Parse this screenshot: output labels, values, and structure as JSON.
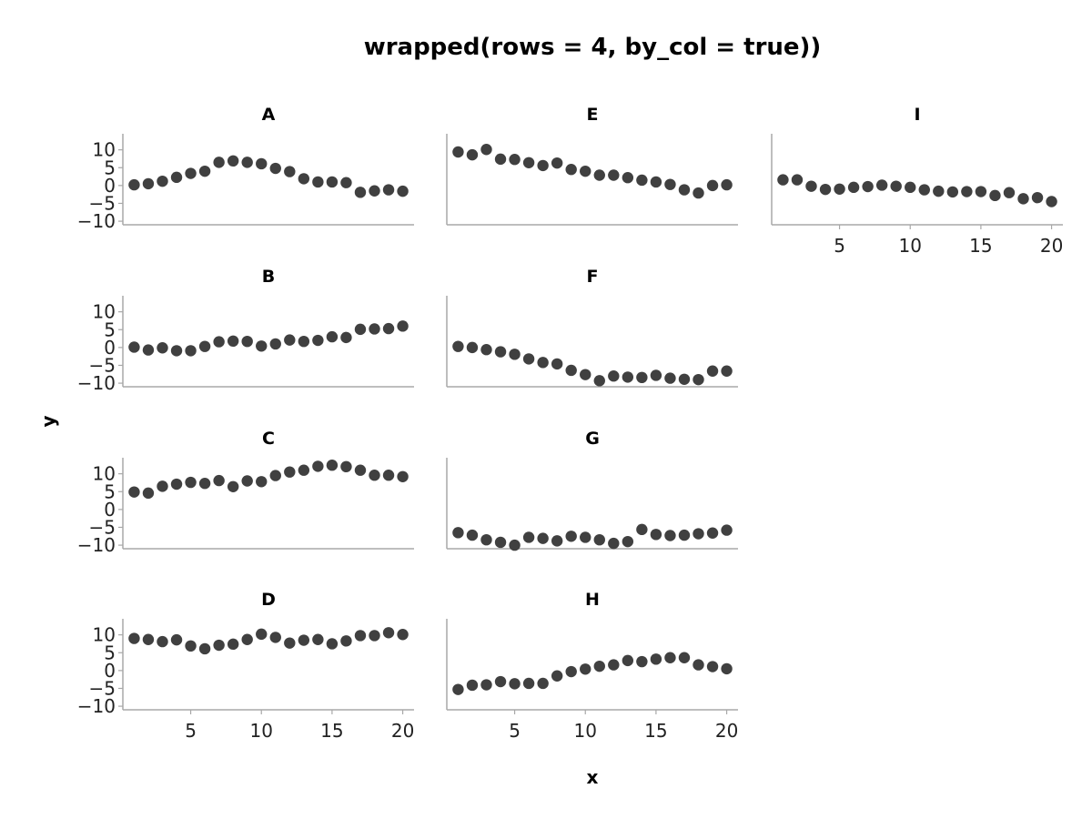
{
  "chart_data": {
    "type": "scatter",
    "title": "wrapped(rows = 4, by_col = true))",
    "xlabel": "x",
    "ylabel": "y",
    "layout": "wrapped, 4 rows, filled by column",
    "xlim": [
      0.2,
      20.8
    ],
    "ylim": [
      -11,
      14.5
    ],
    "x_ticks": [
      5,
      10,
      15,
      20
    ],
    "y_ticks": [
      10,
      5,
      0,
      -5,
      -10
    ],
    "y_tick_labels": [
      "10",
      "5",
      "0",
      "−5",
      "−10"
    ],
    "point_color": "#404040",
    "x": [
      1,
      2,
      3,
      4,
      5,
      6,
      7,
      8,
      9,
      10,
      11,
      12,
      13,
      14,
      15,
      16,
      17,
      18,
      19,
      20
    ],
    "panels": [
      {
        "name": "A",
        "y": [
          0.2,
          0.5,
          1.2,
          2.3,
          3.4,
          4.0,
          6.5,
          6.9,
          6.5,
          6.1,
          4.8,
          3.9,
          1.9,
          1.0,
          1.0,
          0.8,
          -1.9,
          -1.5,
          -1.2,
          -1.6
        ]
      },
      {
        "name": "B",
        "y": [
          0.1,
          -0.7,
          -0.1,
          -0.9,
          -0.9,
          0.3,
          1.6,
          1.8,
          1.7,
          0.4,
          1.0,
          2.1,
          1.7,
          2.0,
          3.0,
          2.8,
          5.1,
          5.2,
          5.3,
          6.0
        ]
      },
      {
        "name": "C",
        "y": [
          4.9,
          4.6,
          6.5,
          7.1,
          7.6,
          7.3,
          8.1,
          6.4,
          8.0,
          7.8,
          9.5,
          10.5,
          11.0,
          12.1,
          12.4,
          12.0,
          11.0,
          9.6,
          9.6,
          9.2
        ]
      },
      {
        "name": "D",
        "y": [
          9.0,
          8.7,
          8.1,
          8.6,
          6.9,
          6.1,
          7.1,
          7.4,
          8.7,
          10.2,
          9.3,
          7.7,
          8.5,
          8.7,
          7.5,
          8.3,
          9.8,
          9.8,
          10.6,
          10.1
        ]
      },
      {
        "name": "E",
        "y": [
          9.4,
          8.6,
          10.1,
          7.4,
          7.3,
          6.4,
          5.6,
          6.3,
          4.5,
          4.0,
          2.9,
          2.9,
          2.2,
          1.5,
          1.0,
          0.3,
          -1.2,
          -2.1,
          0.0,
          0.2
        ]
      },
      {
        "name": "F",
        "y": [
          0.3,
          0.0,
          -0.6,
          -1.2,
          -1.9,
          -3.2,
          -4.2,
          -4.6,
          -6.4,
          -7.6,
          -9.3,
          -8.0,
          -8.3,
          -8.4,
          -7.8,
          -8.6,
          -8.9,
          -9.0,
          -6.6,
          -6.6
        ]
      },
      {
        "name": "G",
        "y": [
          -6.5,
          -7.2,
          -8.5,
          -9.2,
          -10.0,
          -7.8,
          -8.1,
          -8.8,
          -7.5,
          -7.8,
          -8.5,
          -9.5,
          -9.0,
          -5.6,
          -7.0,
          -7.3,
          -7.2,
          -6.8,
          -6.6,
          -5.8
        ]
      },
      {
        "name": "H",
        "y": [
          -5.3,
          -4.1,
          -4.0,
          -3.1,
          -3.7,
          -3.6,
          -3.6,
          -1.5,
          -0.3,
          0.4,
          1.2,
          1.6,
          2.8,
          2.5,
          3.2,
          3.6,
          3.6,
          1.6,
          1.1,
          0.5
        ]
      },
      {
        "name": "I",
        "y": [
          1.6,
          1.6,
          -0.2,
          -1.1,
          -1.0,
          -0.5,
          -0.3,
          0.1,
          -0.2,
          -0.5,
          -1.2,
          -1.6,
          -1.8,
          -1.7,
          -1.7,
          -2.8,
          -2.0,
          -3.7,
          -3.4,
          -4.5
        ]
      }
    ]
  }
}
